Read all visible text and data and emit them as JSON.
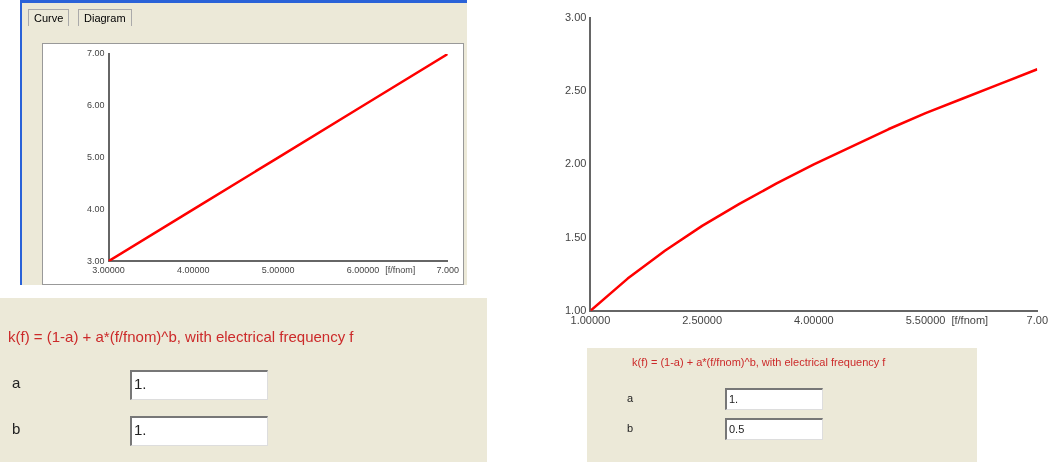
{
  "chart_data": [
    {
      "type": "line",
      "xlabel": "[f/fnom]",
      "annotations": [
        "Curve",
        "Diagram",
        "k(f) = (1-a) + a*(f/fnom)^b, with electrical frequency f",
        "a",
        "1.",
        "b",
        "1."
      ],
      "series": [
        {
          "color": "#ff0000",
          "x": [
            3,
            4,
            5,
            6,
            7
          ],
          "values": [
            3,
            4,
            5,
            6,
            7
          ]
        }
      ],
      "xlim": [
        3,
        7
      ],
      "ylim": [
        3,
        7
      ],
      "xticks": [
        {
          "value": 3,
          "label": "3.00000"
        },
        {
          "value": 4,
          "label": "4.00000"
        },
        {
          "value": 5,
          "label": "5.00000"
        },
        {
          "value": 6,
          "label": "6.00000"
        },
        {
          "value": 7,
          "label": "7.000"
        }
      ],
      "yticks": [
        {
          "value": 3,
          "label": "3.00"
        },
        {
          "value": 4,
          "label": "4.00"
        },
        {
          "value": 5,
          "label": "5.00"
        },
        {
          "value": 6,
          "label": "6.00"
        },
        {
          "value": 7,
          "label": "7.00"
        }
      ],
      "grid": false,
      "legend": false,
      "marker": "none",
      "line_style": "solid"
    },
    {
      "type": "line",
      "xlabel": "[f/fnom]",
      "annotations": [
        "k(f) = (1-a) + a*(f/fnom)^b, with electrical frequency f",
        "a",
        "1.",
        "b",
        "0.5"
      ],
      "series": [
        {
          "color": "#ff0000",
          "x": [
            1,
            1.5,
            2,
            2.5,
            3,
            3.5,
            4,
            4.5,
            5,
            5.5,
            6,
            6.5,
            7
          ],
          "values": [
            1,
            1.22,
            1.41,
            1.58,
            1.73,
            1.87,
            2.0,
            2.12,
            2.24,
            2.35,
            2.45,
            2.55,
            2.65
          ]
        }
      ],
      "xlim": [
        1,
        7
      ],
      "ylim": [
        1,
        3
      ],
      "xticks": [
        {
          "value": 1,
          "label": "1.00000"
        },
        {
          "value": 2.5,
          "label": "2.50000"
        },
        {
          "value": 4,
          "label": "4.00000"
        },
        {
          "value": 5.5,
          "label": "5.50000"
        },
        {
          "value": 7,
          "label": "7.00"
        }
      ],
      "yticks": [
        {
          "value": 1,
          "label": "1.00"
        },
        {
          "value": 1.5,
          "label": "1.50"
        },
        {
          "value": 2,
          "label": "2.00"
        },
        {
          "value": 2.5,
          "label": "2.50"
        },
        {
          "value": 3,
          "label": "3.00"
        }
      ],
      "grid": false,
      "legend": false,
      "marker": "none",
      "line_style": "solid"
    }
  ]
}
